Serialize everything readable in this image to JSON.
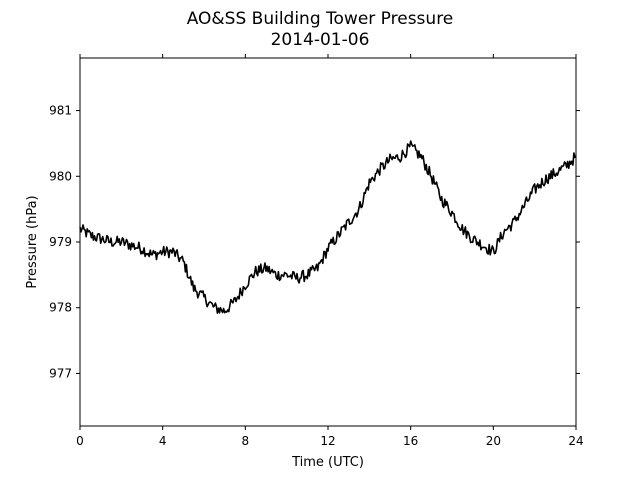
{
  "chart_data": {
    "type": "line",
    "title": "AO&SS Building Tower Pressure",
    "subtitle": "2014-01-06",
    "xlabel": "Time (UTC)",
    "ylabel": "Pressure (hPa)",
    "xlim": [
      0,
      24
    ],
    "ylim": [
      976.2,
      981.8
    ],
    "xticks": [
      0,
      4,
      8,
      12,
      16,
      20,
      24
    ],
    "yticks": [
      977,
      978,
      979,
      980,
      981
    ],
    "grid": false,
    "line_color": "#000000",
    "series": [
      {
        "x": [
          0,
          0.5,
          1,
          1.5,
          2,
          2.5,
          3,
          3.5,
          4,
          4.5,
          5,
          5.5,
          6,
          6.5,
          7,
          7.5,
          8,
          8.5,
          9,
          9.5,
          10,
          10.5,
          11,
          11.5,
          12,
          12.5,
          13,
          13.5,
          14,
          14.5,
          15,
          15.5,
          16,
          16.5,
          17,
          17.5,
          18,
          18.5,
          19,
          19.5,
          20,
          20.5,
          21,
          21.5,
          22,
          22.5,
          23,
          23.5,
          24
        ],
        "y": [
          979.2,
          979.1,
          979.05,
          979.0,
          979.0,
          978.95,
          978.9,
          978.8,
          978.85,
          978.85,
          978.7,
          978.3,
          978.15,
          978.0,
          977.95,
          978.1,
          978.35,
          978.55,
          978.6,
          978.5,
          978.5,
          978.45,
          978.5,
          978.6,
          978.9,
          979.1,
          979.3,
          979.5,
          979.9,
          980.1,
          980.25,
          980.3,
          980.45,
          980.3,
          980.0,
          979.65,
          979.45,
          979.2,
          979.05,
          978.95,
          978.85,
          979.15,
          979.3,
          979.55,
          979.8,
          979.95,
          980.05,
          980.15,
          980.3
        ]
      }
    ]
  }
}
